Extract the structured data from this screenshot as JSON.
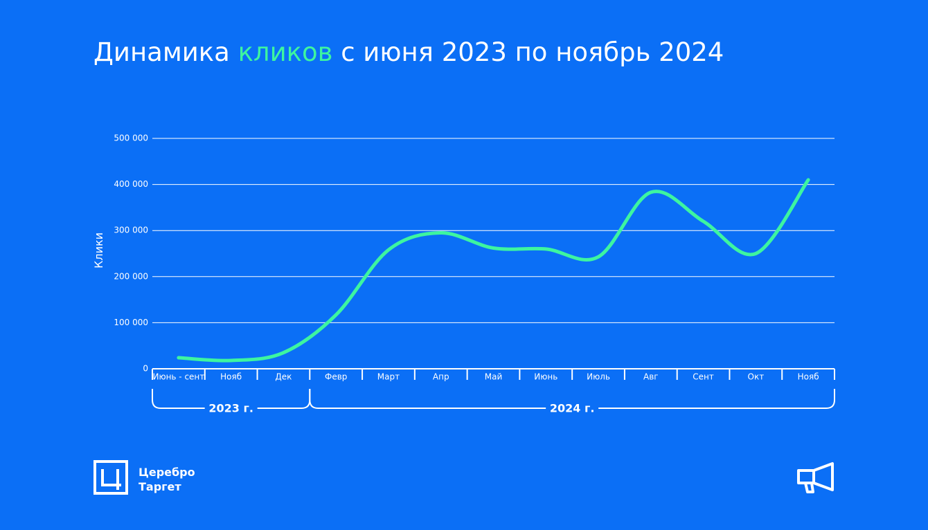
{
  "chart_data": {
    "type": "line",
    "title_start": "Динамика",
    "title_highlight": "кликов",
    "title_end": "с июня 2023 по ноябрь 2024",
    "y_label": "Клики",
    "categories": [
      "Июнь - сент",
      "Нояб",
      "Дек",
      "Февр",
      "Март",
      "Апр",
      "Май",
      "Июнь",
      "Июль",
      "Авг",
      "Сент",
      "Окт",
      "Нояб"
    ],
    "values": [
      24000,
      18000,
      35000,
      117000,
      258000,
      295000,
      262000,
      260000,
      243000,
      383000,
      320000,
      250000,
      410000
    ],
    "color": "#3df5a0",
    "ylim": [
      0,
      500000
    ],
    "yticks": [
      0,
      {
        "value": 100000,
        "label": "100 000"
      },
      {
        "value": 200000,
        "label": "200 000"
      },
      {
        "value": 300000,
        "label": "300 000"
      },
      {
        "value": 400000,
        "label": "400 000"
      },
      {
        "value": 500000,
        "label": "500 000"
      }
    ],
    "grid": true,
    "groups": [
      "2023 г.",
      "2024 г."
    ]
  },
  "logo": {
    "line1": "Церебро",
    "line2": "Таргет"
  }
}
